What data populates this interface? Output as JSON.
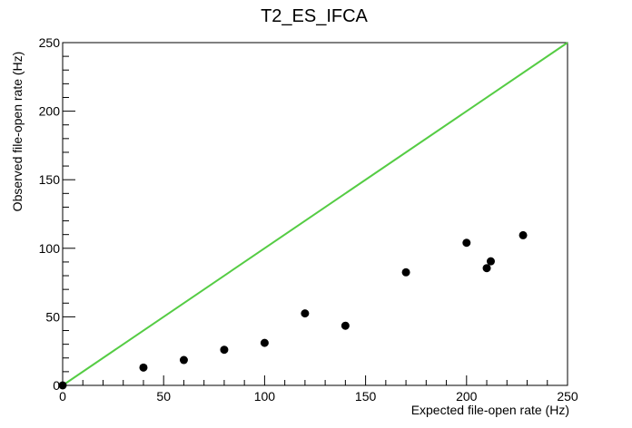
{
  "chart_data": {
    "type": "scatter",
    "title": "T2_ES_IFCA",
    "xlabel": "Expected file-open rate (Hz)",
    "ylabel": "Observed file-open rate (Hz)",
    "xlim": [
      0,
      250
    ],
    "ylim": [
      0,
      250
    ],
    "x_ticks": [
      0,
      50,
      100,
      150,
      200,
      250
    ],
    "y_ticks": [
      0,
      50,
      100,
      150,
      200,
      250
    ],
    "x_tick_labels": [
      "0",
      "50",
      "100",
      "150",
      "200",
      "250"
    ],
    "y_tick_labels": [
      "0",
      "50",
      "100",
      "150",
      "200",
      "250"
    ],
    "grid": false,
    "series": [
      {
        "points": [
          {
            "x": 0,
            "y": 0
          },
          {
            "x": 40,
            "y": 13
          },
          {
            "x": 60,
            "y": 18.5
          },
          {
            "x": 80,
            "y": 26
          },
          {
            "x": 100,
            "y": 31
          },
          {
            "x": 120,
            "y": 52.5
          },
          {
            "x": 140,
            "y": 43.5
          },
          {
            "x": 170,
            "y": 82.5
          },
          {
            "x": 200,
            "y": 104
          },
          {
            "x": 210,
            "y": 85.5
          },
          {
            "x": 212,
            "y": 90.5
          },
          {
            "x": 228,
            "y": 109.5
          }
        ],
        "color": "#000000"
      }
    ],
    "reference_line": {
      "x": [
        0,
        250
      ],
      "y": [
        0,
        250
      ],
      "color": "#55cc44"
    }
  }
}
